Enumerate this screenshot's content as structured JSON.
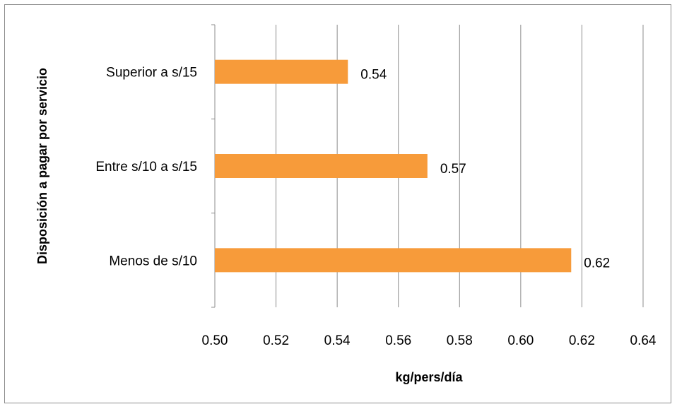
{
  "chart_data": {
    "type": "bar",
    "orientation": "horizontal",
    "categories": [
      "Menos de s/10",
      "Entre s/10 a s/15",
      "Superior a s/15"
    ],
    "values": [
      0.6165,
      0.5695,
      0.5435
    ],
    "data_labels": [
      "0.62",
      "0.57",
      "0.54"
    ],
    "xlabel": "kg/pers/día",
    "ylabel": "Disposición a pagar por servicio",
    "xlim": [
      0.5,
      0.64
    ],
    "x_ticks": [
      "0.50",
      "0.52",
      "0.54",
      "0.56",
      "0.58",
      "0.60",
      "0.62",
      "0.64"
    ],
    "grid": true,
    "legend": "none",
    "bar_color": "#F79B3A"
  }
}
